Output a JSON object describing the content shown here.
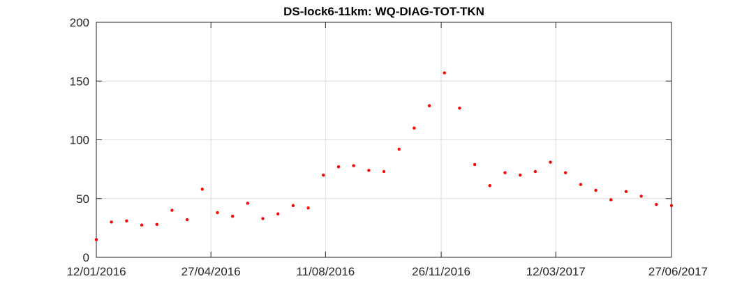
{
  "chart_data": {
    "type": "scatter",
    "title": "DS-lock6-11km: WQ-DIAG-TOT-TKN",
    "xlabel": "",
    "ylabel": "",
    "x_axis_type": "date",
    "xlim": [
      "2016-01-12",
      "2017-06-27"
    ],
    "ylim": [
      0,
      200
    ],
    "y_ticks": [
      0,
      50,
      100,
      150,
      200
    ],
    "x_ticks": [
      "2016-01-12",
      "2016-04-27",
      "2016-08-11",
      "2016-11-26",
      "2017-03-12",
      "2017-06-27"
    ],
    "x_tick_labels": [
      "12/01/2016",
      "27/04/2016",
      "11/08/2016",
      "26/11/2016",
      "12/03/2017",
      "27/06/2017"
    ],
    "y_tick_labels": [
      "0",
      "50",
      "100",
      "150",
      "200"
    ],
    "grid": true,
    "marker_color": "#ff0000",
    "points": [
      {
        "x": "2016-01-12",
        "y": 15
      },
      {
        "x": "2016-01-26",
        "y": 30
      },
      {
        "x": "2016-02-09",
        "y": 31
      },
      {
        "x": "2016-02-23",
        "y": 27.5
      },
      {
        "x": "2016-03-08",
        "y": 28
      },
      {
        "x": "2016-03-22",
        "y": 40
      },
      {
        "x": "2016-04-05",
        "y": 32
      },
      {
        "x": "2016-04-19",
        "y": 58
      },
      {
        "x": "2016-05-03",
        "y": 38
      },
      {
        "x": "2016-05-17",
        "y": 35
      },
      {
        "x": "2016-05-31",
        "y": 46
      },
      {
        "x": "2016-06-14",
        "y": 33
      },
      {
        "x": "2016-06-28",
        "y": 37
      },
      {
        "x": "2016-07-12",
        "y": 44
      },
      {
        "x": "2016-07-26",
        "y": 42
      },
      {
        "x": "2016-08-09",
        "y": 70
      },
      {
        "x": "2016-08-23",
        "y": 77
      },
      {
        "x": "2016-09-06",
        "y": 78
      },
      {
        "x": "2016-09-20",
        "y": 74
      },
      {
        "x": "2016-10-04",
        "y": 73
      },
      {
        "x": "2016-10-18",
        "y": 92
      },
      {
        "x": "2016-11-01",
        "y": 110
      },
      {
        "x": "2016-11-15",
        "y": 129
      },
      {
        "x": "2016-11-29",
        "y": 157
      },
      {
        "x": "2016-12-13",
        "y": 127
      },
      {
        "x": "2016-12-27",
        "y": 79
      },
      {
        "x": "2017-01-10",
        "y": 61
      },
      {
        "x": "2017-01-24",
        "y": 72
      },
      {
        "x": "2017-02-07",
        "y": 70
      },
      {
        "x": "2017-02-21",
        "y": 73
      },
      {
        "x": "2017-03-07",
        "y": 81
      },
      {
        "x": "2017-03-21",
        "y": 72
      },
      {
        "x": "2017-04-04",
        "y": 62
      },
      {
        "x": "2017-04-18",
        "y": 57
      },
      {
        "x": "2017-05-02",
        "y": 49
      },
      {
        "x": "2017-05-16",
        "y": 56
      },
      {
        "x": "2017-05-30",
        "y": 52
      },
      {
        "x": "2017-06-13",
        "y": 45
      },
      {
        "x": "2017-06-27",
        "y": 44
      }
    ]
  }
}
